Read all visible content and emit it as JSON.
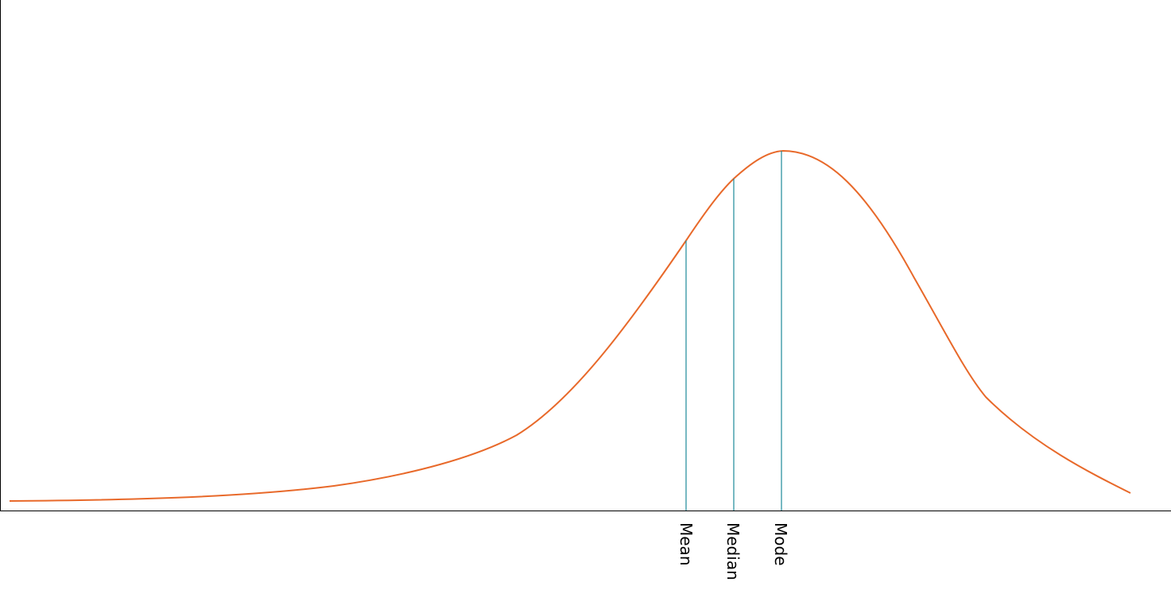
{
  "diagram": {
    "type": "left-skewed distribution curve",
    "colors": {
      "curve": "#e8692a",
      "markers": "#1d8a99",
      "axis": "#000000"
    },
    "markers": [
      {
        "id": "mean",
        "label": "Mean"
      },
      {
        "id": "median",
        "label": "Median"
      },
      {
        "id": "mode",
        "label": "Mode"
      }
    ]
  }
}
